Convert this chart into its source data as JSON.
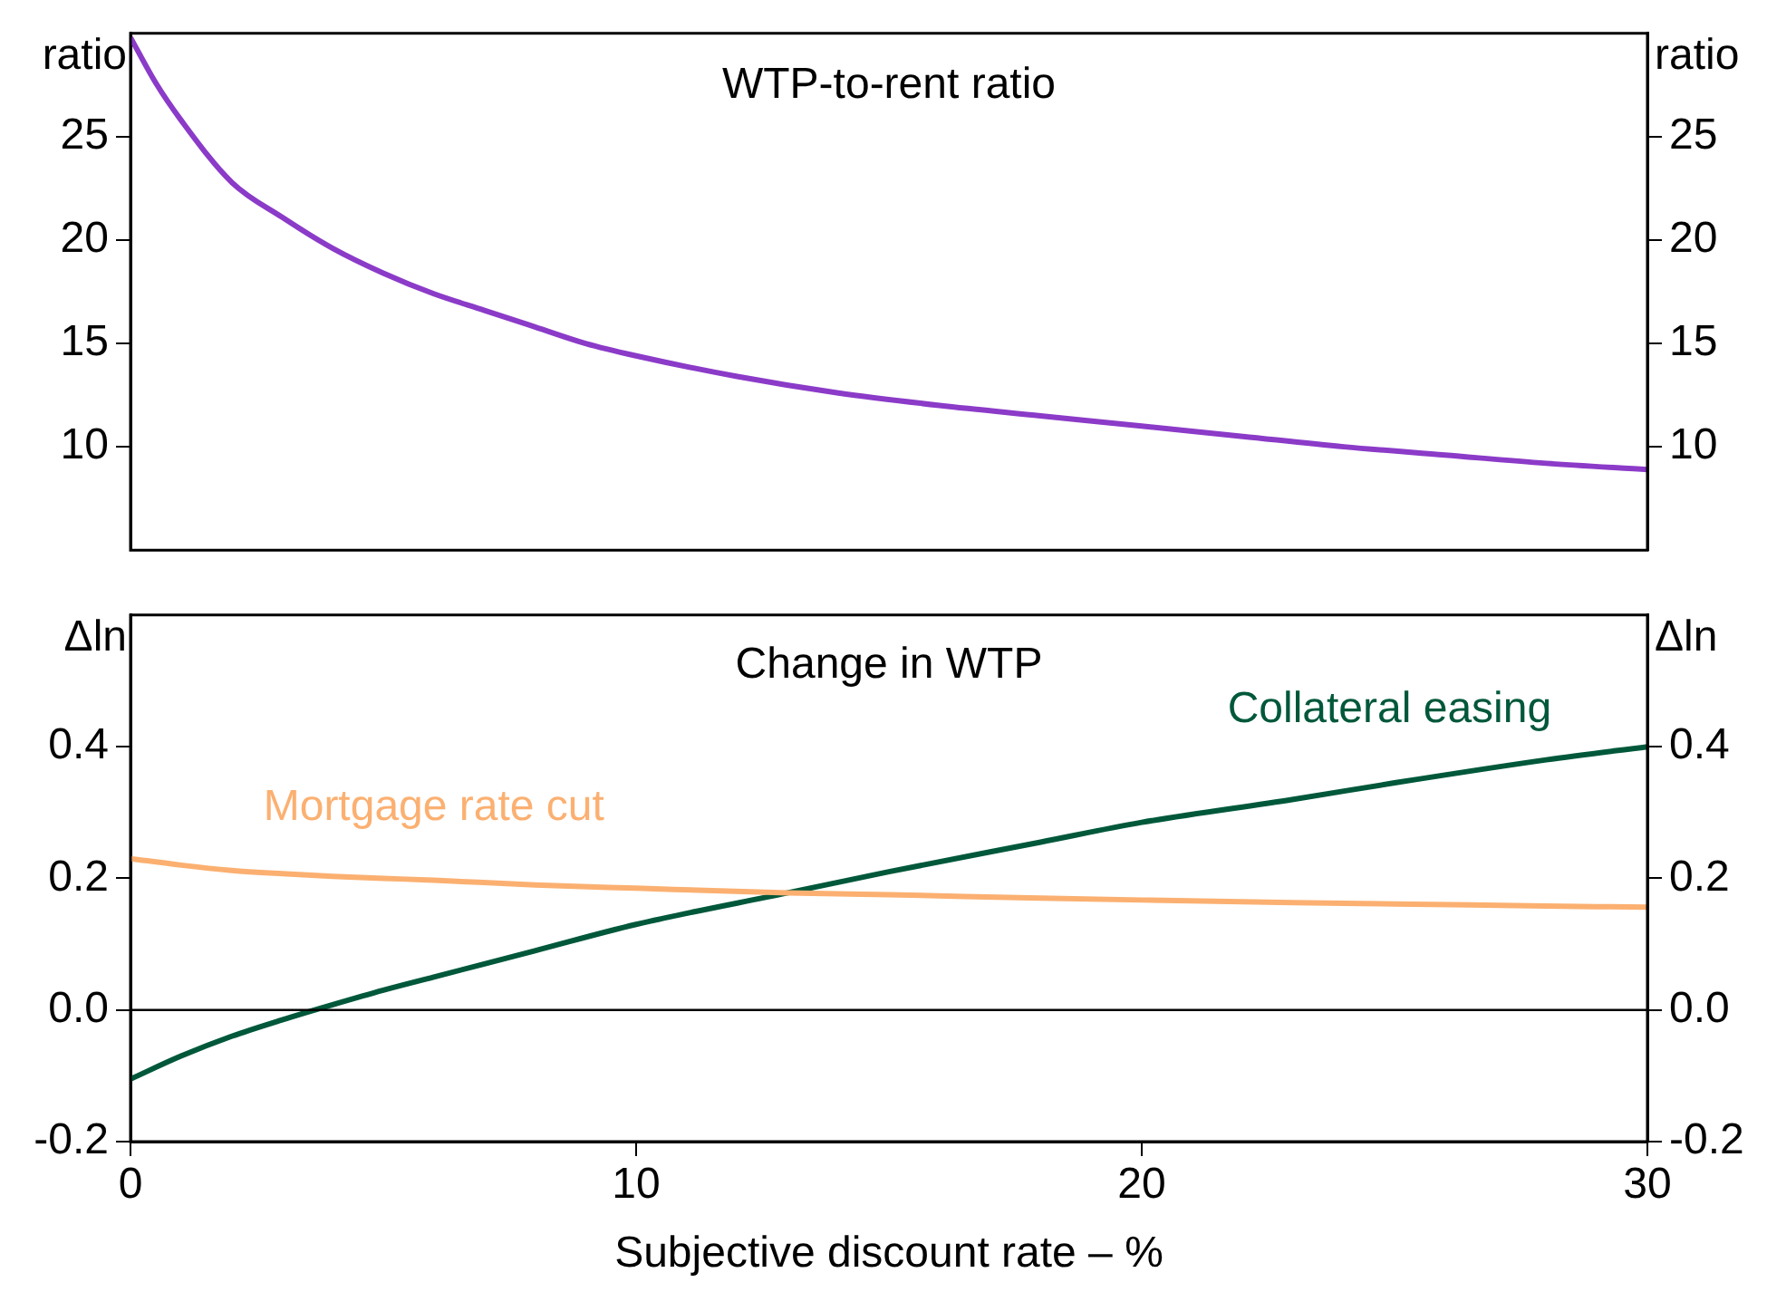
{
  "chart_data": [
    {
      "type": "line",
      "title": "WTP-to-rent ratio",
      "ylabel": "ratio",
      "y2label": "ratio",
      "x": [
        0,
        0.5,
        1,
        2,
        3,
        4,
        5,
        6,
        7,
        8,
        9,
        10,
        12,
        14,
        16,
        18,
        20,
        22,
        24,
        26,
        28,
        30
      ],
      "series": [
        {
          "color": "#8b3bc8",
          "values": [
            29.8,
            27.6,
            25.8,
            22.8,
            21.1,
            19.6,
            18.4,
            17.4,
            16.6,
            15.8,
            15.0,
            14.4,
            13.4,
            12.6,
            12.0,
            11.5,
            11.0,
            10.5,
            10.0,
            9.6,
            9.2,
            8.9
          ]
        }
      ],
      "xlim": [
        0,
        30
      ],
      "ylim": [
        5,
        30
      ],
      "yticks": [
        10,
        15,
        20,
        25
      ],
      "y2lim": [
        5,
        30
      ],
      "y2ticks": [
        10,
        15,
        20,
        25
      ],
      "tick_labels": "y",
      "grid": false,
      "legend": false,
      "marker": "none",
      "line_style": "solid"
    },
    {
      "type": "line",
      "title": "Change in WTP",
      "xlabel": "Subjective discount rate – %",
      "ylabel": "Δln",
      "y2label": "Δln",
      "x": [
        0,
        1,
        2,
        3,
        4,
        5,
        6,
        8,
        10,
        13,
        15,
        18,
        20,
        23,
        25,
        28,
        30
      ],
      "series": [
        {
          "name": "Mortgage rate cut",
          "color": "#fbb071",
          "values": [
            0.23,
            0.22,
            0.212,
            0.207,
            0.203,
            0.2,
            0.197,
            0.19,
            0.185,
            0.178,
            0.175,
            0.17,
            0.167,
            0.163,
            0.161,
            0.158,
            0.156
          ]
        },
        {
          "name": "Collateral easing",
          "color": "#00583a",
          "values": [
            -0.105,
            -0.07,
            -0.04,
            -0.015,
            0.008,
            0.03,
            0.05,
            0.09,
            0.13,
            0.178,
            0.21,
            0.255,
            0.285,
            0.32,
            0.345,
            0.38,
            0.4
          ]
        }
      ],
      "xlim": [
        0,
        30
      ],
      "xticks": [
        0,
        10,
        20,
        30
      ],
      "ylim": [
        -0.2,
        0.6
      ],
      "yticks": [
        -0.2,
        {
          "value": 0,
          "label": "0.0"
        },
        0.2,
        0.4
      ],
      "y2lim": [
        -0.2,
        0.6
      ],
      "y2ticks": [
        -0.2,
        {
          "value": 0,
          "label": "0.0"
        },
        0.2,
        0.4
      ],
      "ref_lines": [
        {
          "axis": "y",
          "value": 0
        }
      ],
      "grid": false,
      "legend": false,
      "marker": "none",
      "line_style": "solid"
    }
  ]
}
